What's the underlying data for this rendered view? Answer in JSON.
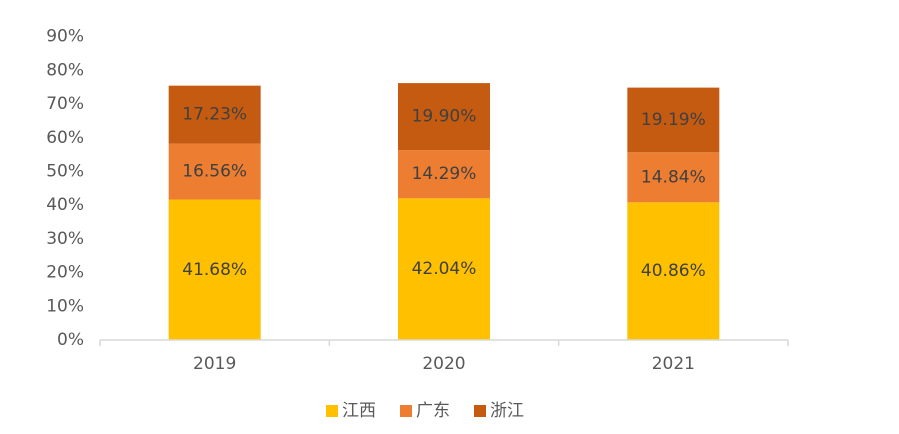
{
  "chart_data": {
    "type": "bar",
    "stacked": true,
    "categories": [
      "2019",
      "2020",
      "2021"
    ],
    "series": [
      {
        "name": "江西",
        "values": [
          41.68,
          42.04,
          40.86
        ],
        "labels": [
          "41.68%",
          "42.04%",
          "40.86%"
        ],
        "color": "#FFC000"
      },
      {
        "name": "广东",
        "values": [
          16.56,
          14.29,
          14.84
        ],
        "labels": [
          "16.56%",
          "14.29%",
          "14.84%"
        ],
        "color": "#ED7D31"
      },
      {
        "name": "浙江",
        "values": [
          17.23,
          19.9,
          19.19
        ],
        "labels": [
          "17.23%",
          "19.90%",
          "19.19%"
        ],
        "color": "#C55A11"
      }
    ],
    "y_ticks": [
      "0%",
      "10%",
      "20%",
      "30%",
      "40%",
      "50%",
      "60%",
      "70%",
      "80%",
      "90%"
    ],
    "ylim": [
      0,
      90
    ],
    "grid": false,
    "legend_position": "bottom",
    "tick_color": "#595959",
    "label_color": "#404040",
    "axis_color": "#d9d9d9"
  }
}
